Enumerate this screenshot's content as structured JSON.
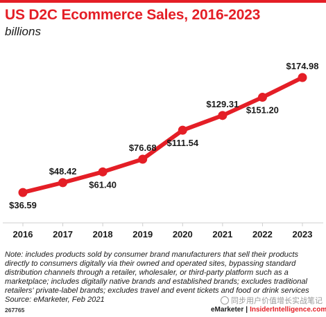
{
  "header": {
    "title": "US D2C Ecommerce Sales, 2016-2023",
    "subtitle": "billions"
  },
  "chart_data": {
    "type": "line",
    "title": "US D2C Ecommerce Sales, 2016-2023",
    "subtitle": "billions",
    "x": [
      "2016",
      "2017",
      "2018",
      "2019",
      "2020",
      "2021",
      "2022",
      "2023"
    ],
    "values": [
      36.59,
      48.42,
      61.4,
      76.68,
      111.54,
      129.31,
      151.2,
      174.98
    ],
    "data_labels": [
      "$36.59",
      "$48.42",
      "$61.40",
      "$76.68",
      "$111.54",
      "$129.31",
      "$151.20",
      "$174.98"
    ],
    "label_position": [
      "below",
      "above",
      "below",
      "above",
      "below",
      "above",
      "below",
      "above"
    ],
    "xlabel": "",
    "ylabel": "",
    "ylim": [
      0,
      200
    ],
    "line_color": "#e41e26",
    "grid": false,
    "legend": "none"
  },
  "note": "Note: includes products sold by consumer brand manufacturers that sell their products directly to consumers digitally via their owned and operated sites, bypassing standard distribution channels through a retailer, wholesaler, or third-party platform such as a marketplace; includes digitally native brands and established brands; excludes traditional retailers' private-label brands; excludes travel and event tickets and food or drink services",
  "source": "Source: eMarketer, Feb 2021",
  "footer": {
    "chart_id": "267765",
    "watermark": "同步用户价值增长实战笔记",
    "brand_emarketer": "eMarketer",
    "brand_separator": "|",
    "brand_insider": "InsiderIntelligence.com"
  },
  "colors": {
    "accent": "#e41e26",
    "text": "#1a1a1a",
    "axis": "#cfcfcf"
  }
}
